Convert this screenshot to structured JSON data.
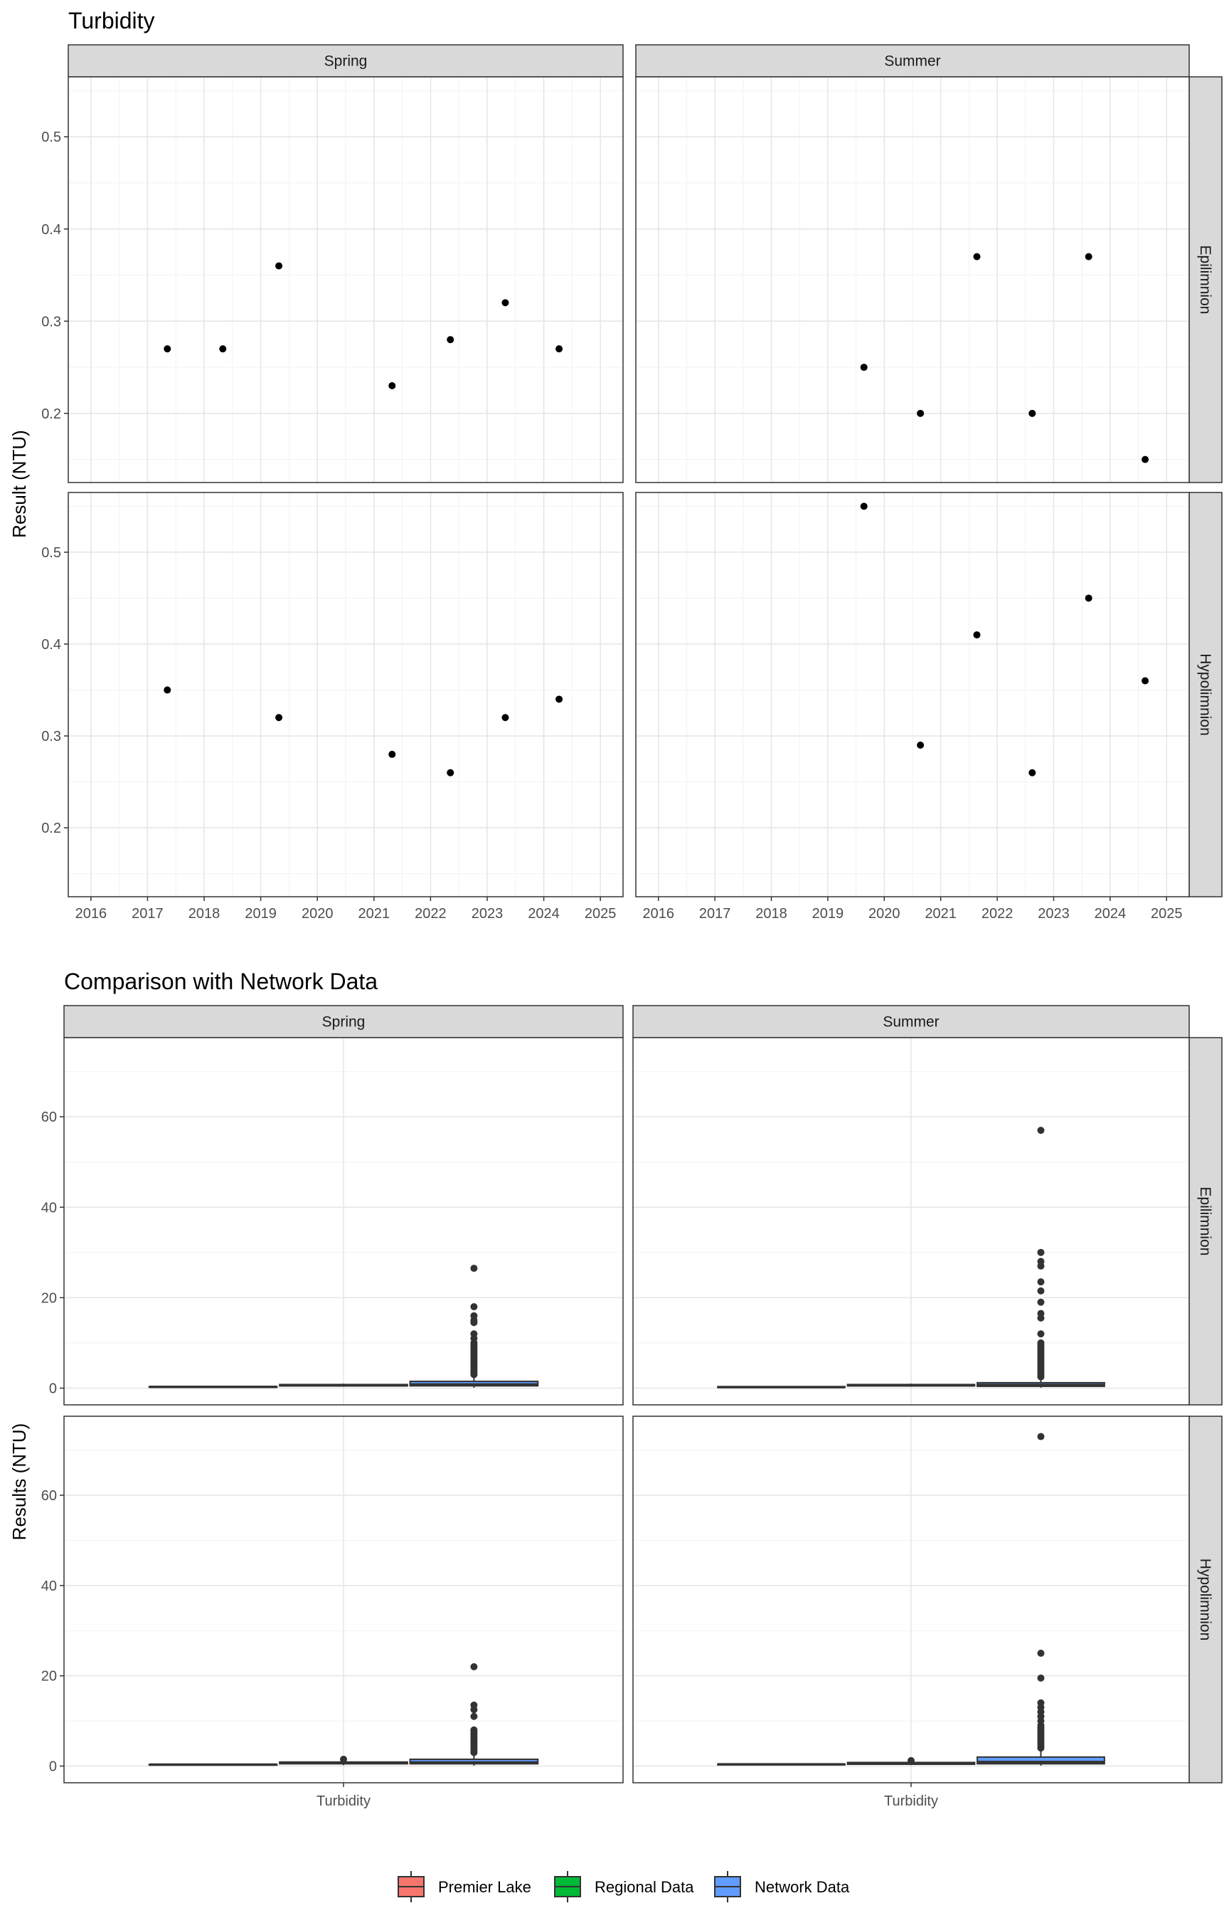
{
  "chart_data": [
    {
      "type": "scatter",
      "title": "Turbidity",
      "ylabel": "Result (NTU)",
      "xlabel": "",
      "col_facets": [
        "Spring",
        "Summer"
      ],
      "row_facets": [
        "Epilimnion",
        "Hypolimnion"
      ],
      "xlim": [
        2015.6,
        2025.4
      ],
      "ylim": [
        0.125,
        0.565
      ],
      "x_ticks": [
        2016,
        2017,
        2018,
        2019,
        2020,
        2021,
        2022,
        2023,
        2024,
        2025
      ],
      "y_ticks": [
        0.2,
        0.3,
        0.4,
        0.5
      ],
      "grid": true,
      "panels": [
        {
          "col": "Spring",
          "row": "Epilimnion",
          "points": [
            [
              2017.35,
              0.27
            ],
            [
              2018.33,
              0.27
            ],
            [
              2019.32,
              0.36
            ],
            [
              2021.32,
              0.23
            ],
            [
              2022.35,
              0.28
            ],
            [
              2023.32,
              0.32
            ],
            [
              2024.27,
              0.27
            ]
          ]
        },
        {
          "col": "Summer",
          "row": "Epilimnion",
          "points": [
            [
              2019.64,
              0.25
            ],
            [
              2020.64,
              0.2
            ],
            [
              2021.64,
              0.37
            ],
            [
              2022.62,
              0.2
            ],
            [
              2023.62,
              0.37
            ],
            [
              2024.62,
              0.15
            ]
          ]
        },
        {
          "col": "Spring",
          "row": "Hypolimnion",
          "points": [
            [
              2017.35,
              0.35
            ],
            [
              2019.32,
              0.32
            ],
            [
              2021.32,
              0.28
            ],
            [
              2022.35,
              0.26
            ],
            [
              2023.32,
              0.32
            ],
            [
              2024.27,
              0.34
            ]
          ]
        },
        {
          "col": "Summer",
          "row": "Hypolimnion",
          "points": [
            [
              2019.64,
              0.55
            ],
            [
              2020.64,
              0.29
            ],
            [
              2021.64,
              0.41
            ],
            [
              2022.62,
              0.26
            ],
            [
              2023.62,
              0.45
            ],
            [
              2024.62,
              0.36
            ]
          ]
        }
      ]
    },
    {
      "type": "box",
      "title": "Comparison with Network Data",
      "ylabel": "Results (NTU)",
      "xlabel": "",
      "categories": [
        "Turbidity"
      ],
      "col_facets": [
        "Spring",
        "Summer"
      ],
      "row_facets": [
        "Epilimnion",
        "Hypolimnion"
      ],
      "ylim": [
        -3.7,
        77.5
      ],
      "y_ticks": [
        0,
        20,
        40,
        60
      ],
      "grid": true,
      "series": [
        {
          "name": "Premier Lake",
          "color": "#F8766D"
        },
        {
          "name": "Regional Data",
          "color": "#00BA38"
        },
        {
          "name": "Network Data",
          "color": "#619CFF"
        }
      ],
      "panels": [
        {
          "col": "Spring",
          "row": "Epilimnion",
          "boxes": [
            {
              "series": "Premier Lake",
              "min": 0.23,
              "q1": 0.27,
              "median": 0.27,
              "q3": 0.3,
              "max": 0.36,
              "outliers": []
            },
            {
              "series": "Regional Data",
              "min": 0.3,
              "q1": 0.5,
              "median": 0.6,
              "q3": 0.8,
              "max": 1.0,
              "outliers": []
            },
            {
              "series": "Network Data",
              "min": 0.1,
              "q1": 0.5,
              "median": 0.8,
              "q3": 1.5,
              "max": 2.8,
              "outliers": [
                3,
                3.5,
                4,
                4.5,
                5,
                5.5,
                6,
                6.5,
                7,
                7.5,
                8,
                8.5,
                9,
                9.5,
                10,
                11,
                12,
                14.5,
                15,
                16,
                18,
                26.5
              ]
            }
          ]
        },
        {
          "col": "Summer",
          "row": "Epilimnion",
          "boxes": [
            {
              "series": "Premier Lake",
              "min": 0.15,
              "q1": 0.2,
              "median": 0.22,
              "q3": 0.33,
              "max": 0.37,
              "outliers": []
            },
            {
              "series": "Regional Data",
              "min": 0.3,
              "q1": 0.5,
              "median": 0.6,
              "q3": 0.8,
              "max": 1.0,
              "outliers": []
            },
            {
              "series": "Network Data",
              "min": 0.1,
              "q1": 0.4,
              "median": 0.7,
              "q3": 1.2,
              "max": 2.3,
              "outliers": [
                2.5,
                3,
                3.5,
                4,
                4.5,
                5,
                5.5,
                6,
                6.5,
                7,
                7.5,
                8,
                8.5,
                9,
                9.5,
                10,
                12,
                15.5,
                16.5,
                19,
                21.5,
                23.5,
                27,
                28,
                30,
                57
              ]
            }
          ]
        },
        {
          "col": "Spring",
          "row": "Hypolimnion",
          "boxes": [
            {
              "series": "Premier Lake",
              "min": 0.26,
              "q1": 0.29,
              "median": 0.32,
              "q3": 0.33,
              "max": 0.35,
              "outliers": []
            },
            {
              "series": "Regional Data",
              "min": 0.2,
              "q1": 0.5,
              "median": 0.7,
              "q3": 0.9,
              "max": 1.2,
              "outliers": [
                1.5
              ]
            },
            {
              "series": "Network Data",
              "min": 0.1,
              "q1": 0.5,
              "median": 0.8,
              "q3": 1.5,
              "max": 2.8,
              "outliers": [
                3,
                3.5,
                4,
                4.5,
                5,
                5.5,
                6,
                6.5,
                7,
                7.5,
                8,
                11,
                12.5,
                13.5,
                22
              ]
            }
          ]
        },
        {
          "col": "Summer",
          "row": "Hypolimnion",
          "boxes": [
            {
              "series": "Premier Lake",
              "min": 0.26,
              "q1": 0.3,
              "median": 0.385,
              "q3": 0.44,
              "max": 0.55,
              "outliers": []
            },
            {
              "series": "Regional Data",
              "min": 0.2,
              "q1": 0.4,
              "median": 0.6,
              "q3": 0.8,
              "max": 1.0,
              "outliers": [
                1.2
              ]
            },
            {
              "series": "Network Data",
              "min": 0.1,
              "q1": 0.5,
              "median": 0.9,
              "q3": 2.0,
              "max": 3.5,
              "outliers": [
                4,
                4.5,
                5,
                5.5,
                6,
                6.5,
                7,
                7.5,
                8,
                8.5,
                9,
                10,
                11,
                12,
                13,
                14,
                19.5,
                25,
                73
              ]
            }
          ]
        }
      ]
    }
  ],
  "legend": {
    "position": "bottom",
    "items": [
      {
        "label": "Premier Lake",
        "color": "#F8766D"
      },
      {
        "label": "Regional Data",
        "color": "#00BA38"
      },
      {
        "label": "Network Data",
        "color": "#619CFF"
      }
    ]
  }
}
